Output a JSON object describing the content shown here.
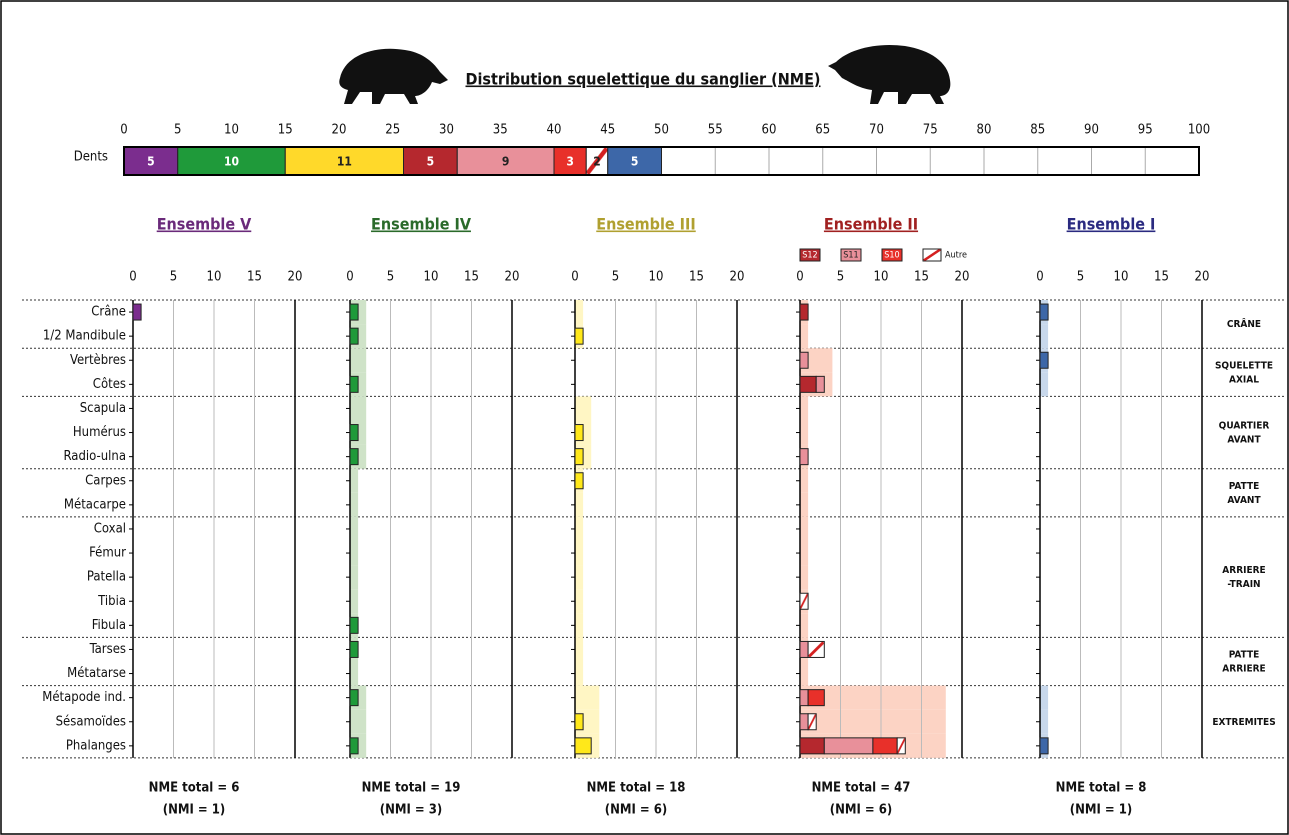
{
  "chart_data": {
    "type": "bar",
    "title": "Distribution squelettique du sanglier (NME)",
    "teeth": {
      "label": "Dents",
      "xlim": [
        0,
        100
      ],
      "xticks": [
        0,
        5,
        10,
        15,
        20,
        25,
        30,
        35,
        40,
        45,
        50,
        55,
        60,
        65,
        70,
        75,
        80,
        85,
        90,
        95,
        100
      ],
      "values": [
        5,
        10,
        11,
        5,
        9,
        3,
        2,
        5
      ],
      "colors": [
        "#7b2d8e",
        "#1f9a3a",
        "#ffd92a",
        "#b5282e",
        "#e8909a",
        "#e8302a",
        "#ffffff",
        "#3d67a8"
      ],
      "hatched": [
        false,
        false,
        false,
        false,
        false,
        false,
        true,
        false
      ]
    },
    "categories": [
      "Crâne",
      "1/2 Mandibule",
      "Vertèbres",
      "Côtes",
      "Scapula",
      "Humérus",
      "Radio-ulna",
      "Carpes",
      "Métacarpe",
      "Coxal",
      "Fémur",
      "Patella",
      "Tibia",
      "Fibula",
      "Tarses",
      "Métatarse",
      "Métapode ind.",
      "Sésamoïdes",
      "Phalanges"
    ],
    "groups": [
      {
        "lines": [
          "CRÂNE"
        ],
        "rows": 2
      },
      {
        "lines": [
          "SQUELETTE",
          "AXIAL"
        ],
        "rows": 2
      },
      {
        "lines": [
          "QUARTIER",
          "AVANT"
        ],
        "rows": 3
      },
      {
        "lines": [
          "PATTE",
          "AVANT"
        ],
        "rows": 2
      },
      {
        "lines": [
          "ARRIERE",
          "-TRAIN"
        ],
        "rows": 5
      },
      {
        "lines": [
          "PATTE",
          "ARRIERE"
        ],
        "rows": 2
      },
      {
        "lines": [
          "EXTREMITES"
        ],
        "rows": 3
      }
    ],
    "panels": [
      {
        "title": "Ensemble V",
        "title_color": "#6a2a7a",
        "xlim": [
          0,
          20
        ],
        "xticks": [
          0,
          5,
          10,
          15,
          20
        ],
        "shade_color": "#e6d4ec",
        "shade_values": [
          0,
          0,
          0,
          0,
          0,
          0,
          0,
          0,
          0,
          0,
          0,
          0,
          0,
          0,
          0,
          0,
          0,
          0,
          0
        ],
        "series": [
          {
            "color": "#7b2d8e",
            "values": [
              1,
              0,
              0,
              0,
              0,
              0,
              0,
              0,
              0,
              0,
              0,
              0,
              0,
              0,
              0,
              0,
              0,
              0,
              0
            ]
          }
        ],
        "total": "NME total = 6",
        "nmi": "(NMI = 1)"
      },
      {
        "title": "Ensemble IV",
        "title_color": "#2a6a2a",
        "xlim": [
          0,
          20
        ],
        "xticks": [
          0,
          5,
          10,
          15,
          20
        ],
        "shade_color": "#cfe3c8",
        "shade_values": [
          2,
          2,
          2,
          2,
          2,
          2,
          2,
          1,
          1,
          1,
          1,
          1,
          1,
          1,
          1,
          1,
          2,
          2,
          2
        ],
        "series": [
          {
            "color": "#1f9a3a",
            "values": [
              1,
              1,
              0,
              1,
              0,
              1,
              1,
              0,
              0,
              0,
              0,
              0,
              0,
              1,
              1,
              0,
              1,
              0,
              1
            ]
          }
        ],
        "total": "NME total = 19",
        "nmi": "(NMI = 3)"
      },
      {
        "title": "Ensemble III",
        "title_color": "#b0a030",
        "xlim": [
          0,
          20
        ],
        "xticks": [
          0,
          5,
          10,
          15,
          20
        ],
        "shade_color": "#fff6c4",
        "shade_values": [
          1,
          1,
          0,
          0,
          2,
          2,
          2,
          1,
          1,
          1,
          1,
          1,
          1,
          1,
          1,
          1,
          3,
          3,
          3
        ],
        "series": [
          {
            "color": "#ffe81a",
            "values": [
              0,
              1,
              0,
              0,
              0,
              1,
              1,
              1,
              0,
              0,
              0,
              0,
              0,
              0,
              0,
              0,
              0,
              1,
              2
            ]
          }
        ],
        "total": "NME total = 18",
        "nmi": "(NMI = 6)"
      },
      {
        "title": "Ensemble II",
        "title_color": "#a02020",
        "xlim": [
          0,
          20
        ],
        "xticks": [
          0,
          5,
          10,
          15,
          20
        ],
        "shade_color": "#fcd3c4",
        "shade_values": [
          1,
          1,
          4,
          4,
          1,
          1,
          1,
          1,
          1,
          1,
          1,
          1,
          1,
          1,
          1,
          1,
          18,
          18,
          18
        ],
        "series": [
          {
            "name": "S12",
            "color": "#b5282e",
            "values": [
              1,
              0,
              0,
              2,
              0,
              0,
              0,
              0,
              0,
              0,
              0,
              0,
              0,
              0,
              0,
              0,
              0,
              0,
              3
            ]
          },
          {
            "name": "S11",
            "color": "#e8909a",
            "values": [
              0,
              0,
              1,
              1,
              0,
              0,
              1,
              0,
              0,
              0,
              0,
              0,
              0,
              0,
              1,
              0,
              1,
              1,
              6
            ]
          },
          {
            "name": "S10",
            "color": "#e8302a",
            "values": [
              0,
              0,
              0,
              0,
              0,
              0,
              0,
              0,
              0,
              0,
              0,
              0,
              0,
              0,
              0,
              0,
              2,
              0,
              3
            ]
          },
          {
            "name": "Autre",
            "color": "#ffffff",
            "hatched": true,
            "values": [
              0,
              0,
              0,
              0,
              0,
              0,
              0,
              0,
              0,
              0,
              0,
              0,
              1,
              0,
              2,
              0,
              0,
              1,
              1
            ]
          }
        ],
        "total": "NME total = 47",
        "nmi": "(NMI = 6)"
      },
      {
        "title": "Ensemble I",
        "title_color": "#2a2a80",
        "xlim": [
          0,
          20
        ],
        "xticks": [
          0,
          5,
          10,
          15,
          20
        ],
        "shade_color": "#c8d8ec",
        "shade_values": [
          1,
          1,
          1,
          1,
          0,
          0,
          0,
          0,
          0,
          0,
          0,
          0,
          0,
          0,
          0,
          0,
          1,
          1,
          1
        ],
        "series": [
          {
            "color": "#3d67a8",
            "values": [
              1,
              0,
              1,
              0,
              0,
              0,
              0,
              0,
              0,
              0,
              0,
              0,
              0,
              0,
              0,
              0,
              0,
              0,
              1
            ]
          }
        ],
        "total": "NME total = 8",
        "nmi": "(NMI = 1)"
      }
    ]
  }
}
